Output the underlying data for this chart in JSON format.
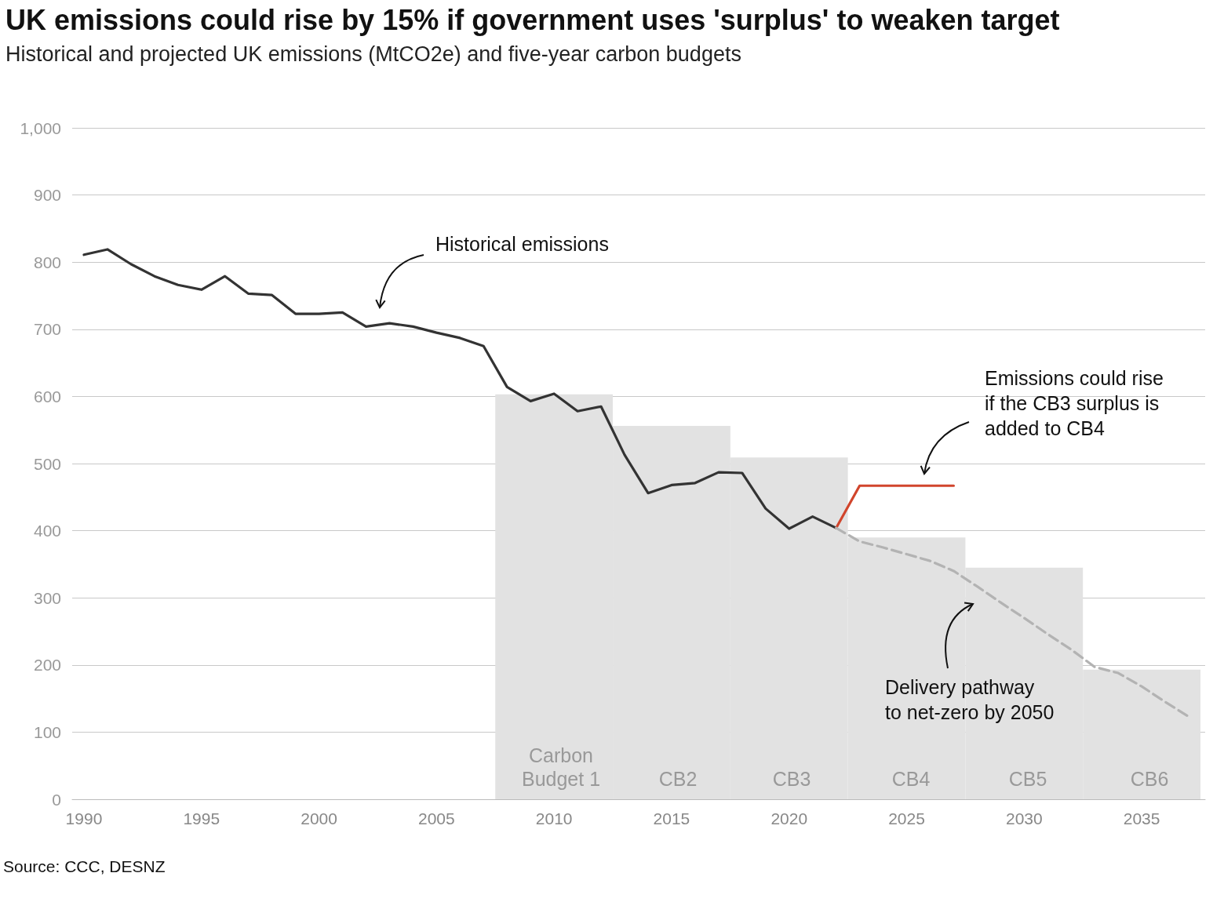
{
  "chart_data": {
    "type": "line",
    "title": "UK emissions could rise by 15% if government uses 'surplus' to weaken target",
    "subtitle": "Historical and projected UK emissions (MtCO2e) and five-year carbon budgets",
    "xlim": [
      1989.5,
      2037.7
    ],
    "xticks": [
      1990,
      1995,
      2000,
      2005,
      2010,
      2015,
      2020,
      2025,
      2030,
      2035
    ],
    "ylim": [
      0,
      1000
    ],
    "yticks": [
      0,
      100,
      200,
      300,
      400,
      500,
      600,
      700,
      800,
      900,
      {
        "value": 1000,
        "label": "1,000"
      }
    ],
    "grid": "y",
    "marker": "none",
    "series": [
      {
        "type": "bar",
        "color": "#e2e2e2",
        "x": [
          2010,
          2015,
          2020,
          2025,
          2030,
          2035
        ],
        "values": [
          603,
          556,
          509,
          390,
          345,
          193
        ]
      },
      {
        "color": "#333333",
        "line_style": "solid",
        "x": [
          1990,
          1991,
          1992,
          1993,
          1994,
          1995,
          1996,
          1997,
          1998,
          1999,
          2000,
          2001,
          2002,
          2003,
          2004,
          2005,
          2006,
          2007,
          2008,
          2009,
          2010,
          2011,
          2012,
          2013,
          2014,
          2015,
          2016,
          2017,
          2018,
          2019,
          2020,
          2021,
          2022
        ],
        "values": [
          811,
          819,
          797,
          779,
          766,
          759,
          779,
          753,
          751,
          723,
          723,
          725,
          704,
          709,
          704,
          695,
          687,
          675,
          614,
          593,
          604,
          578,
          585,
          513,
          456,
          468,
          471,
          487,
          486,
          433,
          403,
          421,
          404
        ]
      },
      {
        "color": "#d1452c",
        "line_style": "solid",
        "x": [
          2022,
          2023,
          2027
        ],
        "values": [
          404,
          467,
          467
        ]
      },
      {
        "color": "#b3b3b3",
        "line_style": "dashed",
        "x": [
          2022,
          2023,
          2024,
          2025,
          2026,
          2027,
          2028,
          2029,
          2030,
          2031,
          2032,
          2033,
          2034,
          2035,
          2036,
          2037
        ],
        "values": [
          404,
          384,
          375,
          365,
          355,
          340,
          317,
          293,
          270,
          246,
          223,
          197,
          188,
          168,
          145,
          123
        ]
      }
    ],
    "annotations": [
      "Historical emissions",
      "Emissions could rise\nif the CB3 surplus is\nadded to CB4",
      "Delivery pathway\nto net-zero by 2050",
      "Carbon\nBudget 1",
      "CB2",
      "CB3",
      "CB4",
      "CB5",
      "CB6",
      "Source: CCC, DESNZ"
    ]
  }
}
